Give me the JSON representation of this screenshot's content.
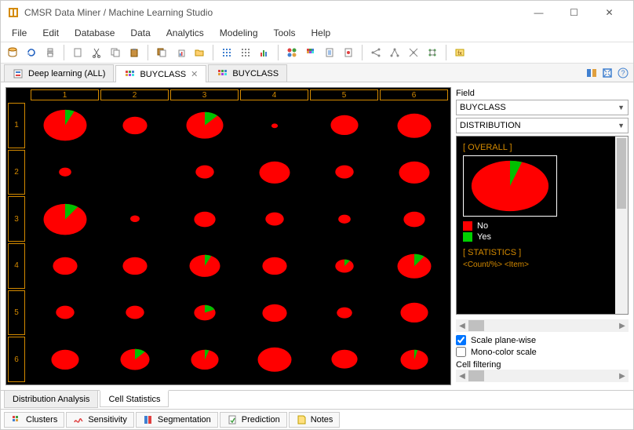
{
  "title": "CMSR Data Miner / Machine Learning Studio",
  "menu": [
    "File",
    "Edit",
    "Database",
    "Data",
    "Analytics",
    "Modeling",
    "Tools",
    "Help"
  ],
  "tabs": [
    {
      "label": "Deep learning (ALL)",
      "closable": false,
      "active": false
    },
    {
      "label": "BUYCLASS",
      "closable": true,
      "active": true
    },
    {
      "label": "BUYCLASS",
      "closable": false,
      "active": false
    }
  ],
  "sub_tabs": [
    {
      "label": "Distribution Analysis",
      "active": false
    },
    {
      "label": "Cell Statistics",
      "active": true
    }
  ],
  "bottom_tabs": [
    "Clusters",
    "Sensitivity",
    "Segmentation",
    "Prediction",
    "Notes"
  ],
  "field_label": "Field",
  "select_field": "BUYCLASS",
  "select_mode": "DISTRIBUTION",
  "overall_label": "[ OVERALL ]",
  "legend": [
    {
      "label": "No",
      "color": "#ff0000"
    },
    {
      "label": "Yes",
      "color": "#00d000"
    }
  ],
  "stats_label": "[ STATISTICS ]",
  "stats_cols": "<Count/%>    <Item>",
  "chk_scale": "Scale plane-wise",
  "chk_mono": "Mono-color scale",
  "cell_filtering": "Cell filtering",
  "colors": {
    "no": "#ff0000",
    "yes": "#00c000",
    "bg": "#000000",
    "header": "#d48a00"
  },
  "grid": {
    "cols": 6,
    "rows": 6,
    "col_labels": [
      "1",
      "2",
      "3",
      "4",
      "5",
      "6"
    ],
    "row_labels": [
      "1",
      "2",
      "3",
      "4",
      "5",
      "6"
    ],
    "cells": [
      [
        {
          "r": 30,
          "yes": 0.07
        },
        {
          "r": 18,
          "yes": 0.0
        },
        {
          "r": 26,
          "yes": 0.12
        },
        {
          "r": 6,
          "yes": 0.0
        },
        {
          "r": 20,
          "yes": 0.0
        },
        {
          "r": 24,
          "yes": 0.0
        }
      ],
      [
        {
          "r": 10,
          "yes": 0.0
        },
        {
          "r": 0,
          "yes": 0.0
        },
        {
          "r": 14,
          "yes": 0.0
        },
        {
          "r": 22,
          "yes": 0.0
        },
        {
          "r": 14,
          "yes": 0.0
        },
        {
          "r": 22,
          "yes": 0.0
        }
      ],
      [
        {
          "r": 30,
          "yes": 0.1
        },
        {
          "r": 8,
          "yes": 0.0
        },
        {
          "r": 16,
          "yes": 0.0
        },
        {
          "r": 14,
          "yes": 0.0
        },
        {
          "r": 10,
          "yes": 0.0
        },
        {
          "r": 16,
          "yes": 0.0
        }
      ],
      [
        {
          "r": 18,
          "yes": 0.0
        },
        {
          "r": 18,
          "yes": 0.0
        },
        {
          "r": 22,
          "yes": 0.07
        },
        {
          "r": 18,
          "yes": 0.0
        },
        {
          "r": 14,
          "yes": 0.1
        },
        {
          "r": 24,
          "yes": 0.1
        }
      ],
      [
        {
          "r": 14,
          "yes": 0.0
        },
        {
          "r": 14,
          "yes": 0.0
        },
        {
          "r": 16,
          "yes": 0.18
        },
        {
          "r": 18,
          "yes": 0.0
        },
        {
          "r": 12,
          "yes": 0.0
        },
        {
          "r": 20,
          "yes": 0.0
        }
      ],
      [
        {
          "r": 20,
          "yes": 0.0
        },
        {
          "r": 21,
          "yes": 0.12
        },
        {
          "r": 20,
          "yes": 0.05
        },
        {
          "r": 24,
          "yes": 0.0
        },
        {
          "r": 19,
          "yes": 0.0
        },
        {
          "r": 20,
          "yes": 0.04
        }
      ]
    ]
  },
  "overall_pie": {
    "yes": 0.05
  }
}
